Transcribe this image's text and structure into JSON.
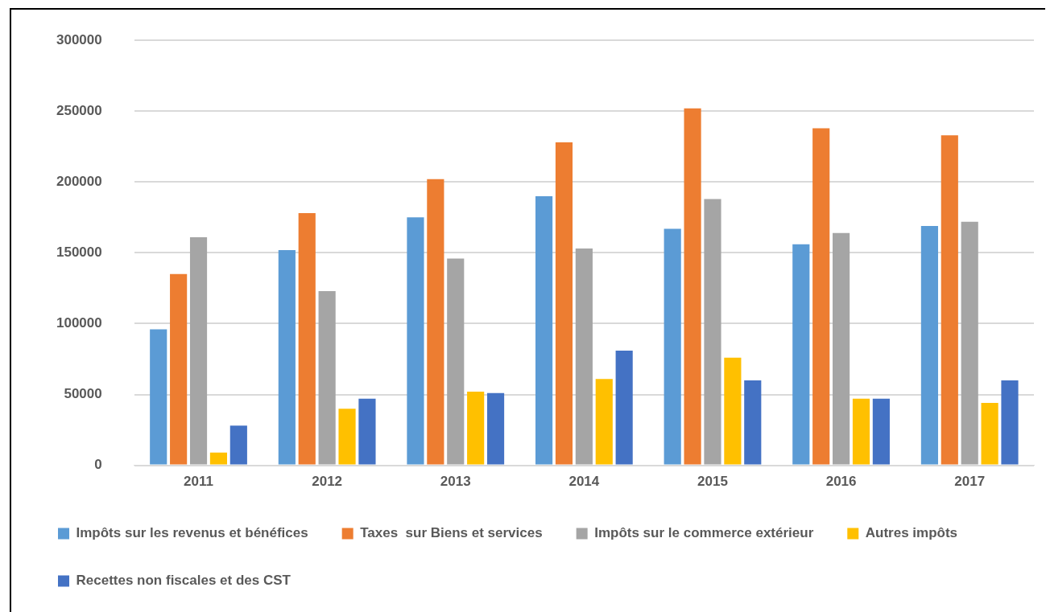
{
  "chart_data": {
    "type": "bar",
    "categories": [
      "2011",
      "2012",
      "2013",
      "2014",
      "2015",
      "2016",
      "2017"
    ],
    "series": [
      {
        "name": "Impôts sur les revenus et bénéfices",
        "color": "#5b9bd5",
        "values": [
          96000,
          152000,
          175000,
          190000,
          167000,
          156000,
          169000
        ]
      },
      {
        "name": "Taxes  sur Biens et services",
        "color": "#ed7d31",
        "values": [
          135000,
          178000,
          202000,
          228000,
          252000,
          238000,
          233000
        ]
      },
      {
        "name": "Impôts sur le commerce extérieur",
        "color": "#a5a5a5",
        "values": [
          161000,
          123000,
          146000,
          153000,
          188000,
          164000,
          172000
        ]
      },
      {
        "name": "Autres impôts",
        "color": "#ffc000",
        "values": [
          9000,
          40000,
          52000,
          61000,
          76000,
          47000,
          44000
        ]
      },
      {
        "name": "Recettes non fiscales et des CST",
        "color": "#4472c4",
        "values": [
          28000,
          47000,
          51000,
          81000,
          60000,
          47000,
          60000
        ]
      }
    ],
    "ylim": [
      0,
      300000
    ],
    "yticks": [
      0,
      50000,
      100000,
      150000,
      200000,
      250000,
      300000
    ],
    "grid": "y",
    "legend": "bottom"
  }
}
